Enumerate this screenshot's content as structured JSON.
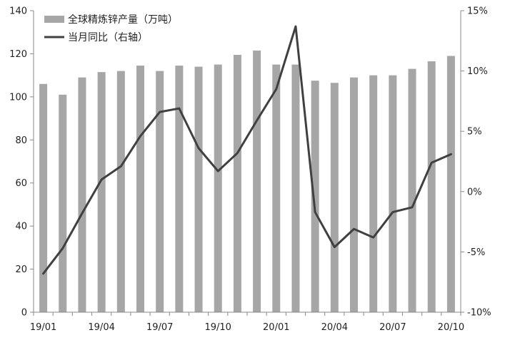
{
  "chart_data": {
    "type": "bar",
    "categories": [
      "19/01",
      "19/02",
      "19/03",
      "19/04",
      "19/05",
      "19/06",
      "19/07",
      "19/08",
      "19/09",
      "19/10",
      "19/11",
      "19/12",
      "20/01",
      "20/02",
      "20/03",
      "20/04",
      "20/05",
      "20/06",
      "20/07",
      "20/08",
      "20/09",
      "20/10"
    ],
    "x_tick_labels": [
      "19/01",
      "19/04",
      "19/07",
      "19/10",
      "20/01",
      "20/04",
      "20/07",
      "20/10"
    ],
    "series": [
      {
        "name": "全球精炼锌产量（万吨）",
        "type": "bar",
        "axis": "left",
        "color": "#a6a6a6",
        "values": [
          106,
          101,
          109,
          111.5,
          112,
          114.5,
          112,
          114.5,
          114,
          115,
          119.5,
          121.5,
          115,
          115,
          107.5,
          106.5,
          109,
          110,
          110,
          113,
          116.5,
          119
        ]
      },
      {
        "name": "当月同比（右轴）",
        "type": "line",
        "axis": "right",
        "color": "#404040",
        "values": [
          -6.8,
          -4.7,
          -1.8,
          1.0,
          2.1,
          4.6,
          6.6,
          6.9,
          3.6,
          1.7,
          3.2,
          5.9,
          8.5,
          13.7,
          -1.7,
          -4.6,
          -3.1,
          -3.8,
          -1.7,
          -1.3,
          2.4,
          3.1
        ]
      }
    ],
    "y_left": {
      "ylim": [
        0,
        140
      ],
      "ticks": [
        "0",
        "20",
        "40",
        "60",
        "80",
        "100",
        "120",
        "140"
      ]
    },
    "y_right": {
      "ylim": [
        -10,
        15
      ],
      "ticks": [
        "-10%",
        "-5%",
        "0%",
        "5%",
        "10%",
        "15%"
      ]
    },
    "grid": false,
    "legend": "top-left"
  }
}
